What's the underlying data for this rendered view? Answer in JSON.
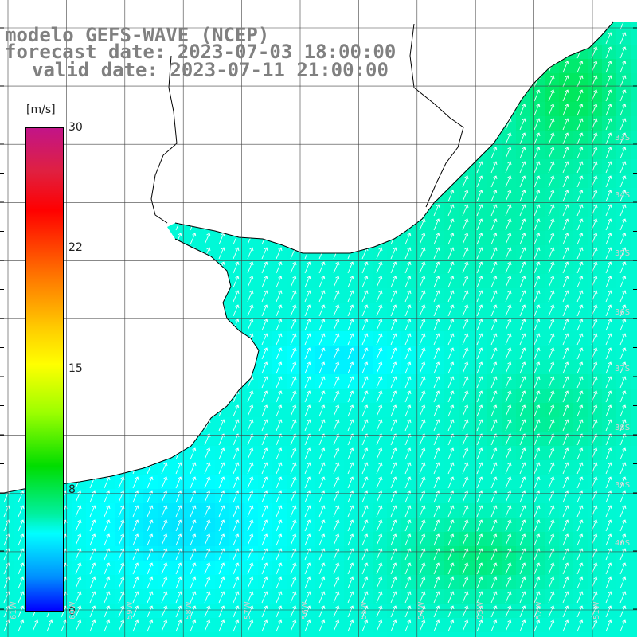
{
  "title": {
    "line1": "modelo GEFS-WAVE (NCEP)",
    "line2": "forecast date: 2023-07-03 18:00:00",
    "line3": "valid date: 2023-07-11 21:00:00"
  },
  "colorbar": {
    "unit": "[m/s]",
    "ticks": [
      "30",
      "22",
      "15",
      "8",
      "0"
    ],
    "tick_values": [
      30,
      22,
      15,
      8,
      0
    ],
    "min": 0,
    "max": 30,
    "colors": [
      "#0000ff",
      "#0090ff",
      "#00ffff",
      "#00f0a0",
      "#00dd00",
      "#9cff00",
      "#ffff00",
      "#ffd000",
      "#ff7000",
      "#ff0000",
      "#e02040",
      "#c21488"
    ]
  },
  "map": {
    "grid_latitudes": [
      "33S",
      "34S",
      "35S",
      "36S",
      "37S",
      "38S",
      "39S",
      "40S"
    ],
    "grid_longitudes": [
      "61W",
      "60W",
      "59W",
      "58W",
      "57W",
      "56W",
      "55W",
      "54W",
      "53W",
      "52W",
      "51W"
    ],
    "wind_direction": "south-southwest",
    "colors": {
      "land": "#ffffff",
      "coast": "#000000",
      "grid": "#404040",
      "arrow": "#ffffff"
    }
  }
}
